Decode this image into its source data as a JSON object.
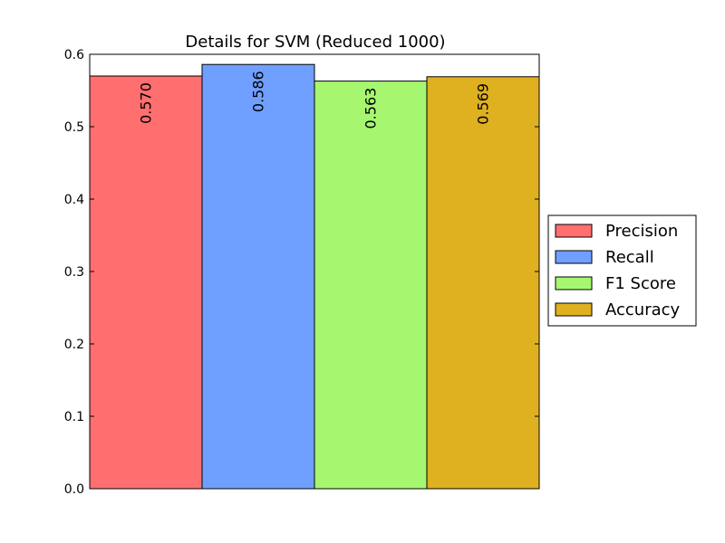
{
  "chart_data": {
    "type": "bar",
    "title": "Details for SVM (Reduced 1000)",
    "xlabel": "",
    "ylabel": "",
    "ylim": [
      0,
      0.6
    ],
    "yticks": [
      "0.0",
      "0.1",
      "0.2",
      "0.3",
      "0.4",
      "0.5",
      "0.6"
    ],
    "grid": "y-dotted",
    "legend_position": "right",
    "categories": [
      "Precision",
      "Recall",
      "F1 Score",
      "Accuracy"
    ],
    "values": [
      0.57,
      0.586,
      0.563,
      0.569
    ],
    "value_labels": [
      "0.570",
      "0.586",
      "0.563",
      "0.569"
    ],
    "colors": [
      "#ff6f6f",
      "#6f9fff",
      "#a6f76f",
      "#dfb01f"
    ]
  }
}
